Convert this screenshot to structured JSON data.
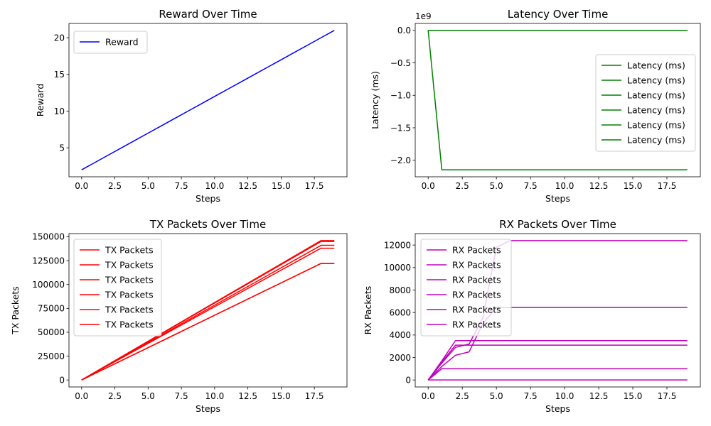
{
  "chart_data": [
    {
      "type": "line",
      "title": "Reward Over Time",
      "xlabel": "Steps",
      "ylabel": "Reward",
      "xlim": [
        -0.95,
        19.95
      ],
      "ylim": [
        1.05,
        21.95
      ],
      "xticks": [
        0,
        2.5,
        5,
        7.5,
        10,
        12.5,
        15,
        17.5
      ],
      "xtick_labels": [
        "0.0",
        "2.5",
        "5.0",
        "7.5",
        "10.0",
        "12.5",
        "15.0",
        "17.5"
      ],
      "yticks": [
        5,
        10,
        15,
        20
      ],
      "ytick_labels": [
        "5",
        "10",
        "15",
        "20"
      ],
      "legend_position": "top-left",
      "grid": false,
      "series": [
        {
          "name": "Reward",
          "color": "#0000ff",
          "x": [
            0,
            1,
            2,
            3,
            4,
            5,
            6,
            7,
            8,
            9,
            10,
            11,
            12,
            13,
            14,
            15,
            16,
            17,
            18,
            19
          ],
          "y": [
            2,
            3,
            4,
            5,
            6,
            7,
            8,
            9,
            10,
            11,
            12,
            13,
            14,
            15,
            16,
            17,
            18,
            19,
            20,
            21
          ]
        }
      ]
    },
    {
      "type": "line",
      "title": "Latency Over Time",
      "xlabel": "Steps",
      "ylabel": "Latency (ms)",
      "y_offset_label": "1e9",
      "y_scale_factor": 1000000000,
      "xlim": [
        -0.95,
        19.95
      ],
      "ylim": [
        -2.255,
        0.107
      ],
      "xticks": [
        0,
        2.5,
        5,
        7.5,
        10,
        12.5,
        15,
        17.5
      ],
      "xtick_labels": [
        "0.0",
        "2.5",
        "5.0",
        "7.5",
        "10.0",
        "12.5",
        "15.0",
        "17.5"
      ],
      "yticks": [
        0,
        -0.5,
        -1.0,
        -1.5,
        -2.0
      ],
      "ytick_labels": [
        "0.0",
        "−0.5",
        "−1.0",
        "−1.5",
        "−2.0"
      ],
      "legend_position": "center-right",
      "grid": false,
      "series": [
        {
          "name": "Latency (ms)",
          "color": "#008000",
          "x": [
            0,
            1,
            2,
            3,
            4,
            5,
            6,
            7,
            8,
            9,
            10,
            11,
            12,
            13,
            14,
            15,
            16,
            17,
            18,
            19
          ],
          "y": [
            0,
            -2.147,
            -2.147,
            -2.147,
            -2.147,
            -2.147,
            -2.147,
            -2.147,
            -2.147,
            -2.147,
            -2.147,
            -2.147,
            -2.147,
            -2.147,
            -2.147,
            -2.147,
            -2.147,
            -2.147,
            -2.147,
            -2.147
          ]
        },
        {
          "name": "Latency (ms)",
          "color": "#008000",
          "x": [
            0,
            19
          ],
          "y": [
            0,
            0
          ]
        },
        {
          "name": "Latency (ms)",
          "color": "#008000",
          "x": [
            0,
            19
          ],
          "y": [
            0,
            0
          ]
        },
        {
          "name": "Latency (ms)",
          "color": "#008000",
          "x": [
            0,
            19
          ],
          "y": [
            0,
            0
          ]
        },
        {
          "name": "Latency (ms)",
          "color": "#008000",
          "x": [
            0,
            19
          ],
          "y": [
            0,
            0
          ]
        },
        {
          "name": "Latency (ms)",
          "color": "#008000",
          "x": [
            0,
            19
          ],
          "y": [
            0,
            0
          ]
        }
      ]
    },
    {
      "type": "line",
      "title": "TX Packets Over Time",
      "xlabel": "Steps",
      "ylabel": "TX Packets",
      "xlim": [
        -0.95,
        19.95
      ],
      "ylim": [
        -7300,
        153300
      ],
      "xticks": [
        0,
        2.5,
        5,
        7.5,
        10,
        12.5,
        15,
        17.5
      ],
      "xtick_labels": [
        "0.0",
        "2.5",
        "5.0",
        "7.5",
        "10.0",
        "12.5",
        "15.0",
        "17.5"
      ],
      "yticks": [
        0,
        25000,
        50000,
        75000,
        100000,
        125000,
        150000
      ],
      "ytick_labels": [
        "0",
        "25000",
        "50000",
        "75000",
        "100000",
        "125000",
        "150000"
      ],
      "legend_position": "top-left",
      "grid": false,
      "series": [
        {
          "name": "TX Packets",
          "color": "#ff0000",
          "x": [
            0,
            18,
            19
          ],
          "y": [
            0,
            146000,
            146000
          ]
        },
        {
          "name": "TX Packets",
          "color": "#ff0000",
          "x": [
            0,
            18,
            19
          ],
          "y": [
            0,
            145000,
            145000
          ]
        },
        {
          "name": "TX Packets",
          "color": "#ff0000",
          "x": [
            0,
            18,
            19
          ],
          "y": [
            0,
            141000,
            141000
          ]
        },
        {
          "name": "TX Packets",
          "color": "#ff0000",
          "x": [
            0,
            18,
            19
          ],
          "y": [
            0,
            138000,
            138000
          ]
        },
        {
          "name": "TX Packets",
          "color": "#ff0000",
          "x": [
            0,
            18,
            19
          ],
          "y": [
            0,
            122000,
            122000
          ]
        },
        {
          "name": "TX Packets",
          "color": "#ff0000",
          "x": [
            0,
            18,
            19
          ],
          "y": [
            0,
            122000,
            122000
          ]
        }
      ]
    },
    {
      "type": "line",
      "title": "RX Packets Over Time",
      "xlabel": "Steps",
      "ylabel": "RX Packets",
      "xlim": [
        -0.95,
        19.95
      ],
      "ylim": [
        -620,
        13020
      ],
      "xticks": [
        0,
        2.5,
        5,
        7.5,
        10,
        12.5,
        15,
        17.5
      ],
      "xtick_labels": [
        "0.0",
        "2.5",
        "5.0",
        "7.5",
        "10.0",
        "12.5",
        "15.0",
        "17.5"
      ],
      "yticks": [
        0,
        2000,
        4000,
        6000,
        8000,
        10000,
        12000
      ],
      "ytick_labels": [
        "0",
        "2000",
        "4000",
        "6000",
        "8000",
        "10000",
        "12000"
      ],
      "legend_position": "top-left",
      "grid": false,
      "series": [
        {
          "name": "RX Packets",
          "color": "#bf00bf",
          "x": [
            0,
            1,
            2,
            3,
            4,
            5,
            6,
            19
          ],
          "y": [
            0,
            1500,
            2900,
            3200,
            5500,
            11800,
            12400,
            12400
          ]
        },
        {
          "name": "RX Packets",
          "color": "#bf00bf",
          "x": [
            0,
            1,
            2,
            3,
            4,
            5,
            19
          ],
          "y": [
            0,
            1200,
            2200,
            2500,
            5000,
            6450,
            6450
          ]
        },
        {
          "name": "RX Packets",
          "color": "#bf00bf",
          "x": [
            0,
            1,
            2,
            19
          ],
          "y": [
            0,
            1700,
            3500,
            3500
          ]
        },
        {
          "name": "RX Packets",
          "color": "#bf00bf",
          "x": [
            0,
            1,
            2,
            19
          ],
          "y": [
            0,
            1600,
            3100,
            3100
          ]
        },
        {
          "name": "RX Packets",
          "color": "#bf00bf",
          "x": [
            0,
            1,
            19
          ],
          "y": [
            0,
            1000,
            1000
          ]
        },
        {
          "name": "RX Packets",
          "color": "#bf00bf",
          "x": [
            0,
            19
          ],
          "y": [
            0,
            0
          ]
        }
      ]
    }
  ]
}
